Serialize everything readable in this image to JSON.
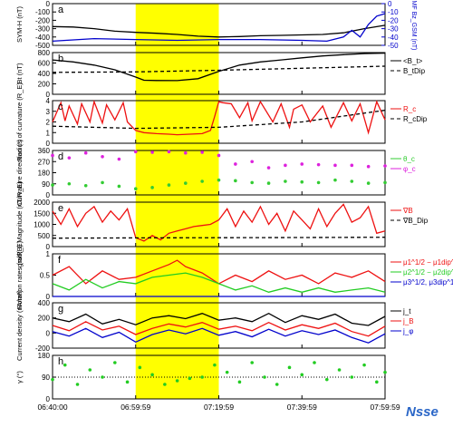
{
  "figure": {
    "x_ticks": [
      "06:40:00",
      "06:59:59",
      "07:19:59",
      "07:39:59",
      "07:59:59"
    ],
    "x_tick_values": [
      0,
      20,
      40,
      60,
      80
    ],
    "x_range": [
      0,
      80
    ],
    "highlight_interval": [
      "06:59:59",
      "07:19:59"
    ],
    "highlight_color": "#ffff00",
    "logo_text": "Nsse"
  },
  "chart_data": [
    {
      "type": "line",
      "panel": "a",
      "ylabel": "SYM-H (nT)",
      "ylim": [
        -500,
        0
      ],
      "yticks": [
        0,
        -100,
        -200,
        -300,
        -400,
        -500
      ],
      "ylabel_right": "IMF Bz_GSM (nT)",
      "ylim_right": [
        -50,
        0
      ],
      "yticks_right": [
        0,
        -10,
        -20,
        -30,
        -40,
        -50
      ],
      "series": [
        {
          "axis": "left",
          "color": "#000000",
          "x": [
            0,
            5,
            10,
            15,
            20,
            25,
            30,
            35,
            40,
            45,
            50,
            55,
            60,
            65,
            70,
            75,
            80
          ],
          "y": [
            -275,
            -280,
            -300,
            -330,
            -345,
            -355,
            -370,
            -390,
            -400,
            -395,
            -385,
            -380,
            -375,
            -370,
            -350,
            -300,
            -260
          ]
        },
        {
          "axis": "right",
          "color": "#0000cc",
          "x": [
            0,
            10,
            20,
            30,
            40,
            50,
            60,
            66,
            70,
            72,
            74,
            76,
            78,
            80
          ],
          "y": [
            -45,
            -42,
            -43,
            -44,
            -43,
            -43,
            -44,
            -45,
            -40,
            -32,
            -40,
            -25,
            -15,
            -12
          ]
        }
      ]
    },
    {
      "type": "line",
      "panel": "b",
      "ylabel": "Bt (nT)",
      "ylim": [
        0,
        800
      ],
      "yticks": [
        0,
        200,
        400,
        600,
        800
      ],
      "series": [
        {
          "name": "<B_t>",
          "color": "#000000",
          "dash": "",
          "x": [
            0,
            5,
            10,
            15,
            20,
            22,
            25,
            30,
            35,
            40,
            45,
            50,
            55,
            60,
            65,
            70,
            75,
            80
          ],
          "y": [
            660,
            620,
            560,
            470,
            330,
            270,
            265,
            262,
            300,
            440,
            560,
            620,
            660,
            700,
            735,
            760,
            780,
            790
          ]
        },
        {
          "name": "B_tDip",
          "color": "#000000",
          "dash": "4 3",
          "x": [
            0,
            20,
            40,
            60,
            80
          ],
          "y": [
            420,
            430,
            460,
            500,
            540
          ]
        }
      ]
    },
    {
      "type": "line",
      "panel": "c",
      "ylabel": "Radius of curvature (R_E)",
      "ylim": [
        0,
        4
      ],
      "yticks": [
        0,
        1,
        2,
        3,
        4
      ],
      "series": [
        {
          "name": "R_c",
          "color": "#ee1111",
          "dash": "",
          "x": [
            0,
            2,
            3,
            4,
            6,
            7,
            9,
            10,
            12,
            13,
            15,
            17,
            18,
            20,
            22,
            25,
            28,
            30,
            33,
            36,
            38,
            39,
            40,
            41,
            43,
            45,
            47,
            48,
            50,
            53,
            55,
            57,
            58,
            60,
            62,
            65,
            67,
            70,
            72,
            74,
            76,
            78,
            80
          ],
          "y": [
            2.0,
            3.8,
            2.1,
            3.5,
            1.8,
            3.7,
            2.0,
            3.9,
            1.9,
            3.6,
            2.2,
            3.8,
            2.0,
            1.2,
            1.0,
            0.9,
            0.85,
            0.8,
            0.85,
            0.9,
            1.2,
            2.5,
            3.9,
            3.8,
            3.7,
            2.4,
            3.8,
            2.1,
            3.9,
            2.0,
            3.7,
            1.5,
            3.2,
            3.6,
            2.0,
            3.5,
            1.5,
            3.8,
            2.1,
            3.7,
            1.0,
            3.9,
            2.2
          ]
        },
        {
          "name": "R_cDip",
          "color": "#000000",
          "dash": "4 3",
          "x": [
            0,
            20,
            40,
            60,
            80
          ],
          "y": [
            1.6,
            1.4,
            1.5,
            2.0,
            3.1
          ]
        }
      ]
    },
    {
      "type": "scatter",
      "panel": "d",
      "ylabel": "Curvature direction (°)",
      "ylim": [
        0,
        360
      ],
      "yticks": [
        0,
        90,
        180,
        270,
        360
      ],
      "series": [
        {
          "name": "θ_c",
          "color": "#33cc33",
          "x": [
            0,
            4,
            8,
            12,
            16,
            20,
            24,
            28,
            32,
            36,
            40,
            44,
            48,
            52,
            56,
            60,
            64,
            68,
            72,
            76,
            80
          ],
          "y": [
            80,
            90,
            75,
            100,
            70,
            50,
            60,
            80,
            95,
            110,
            120,
            115,
            100,
            95,
            110,
            105,
            100,
            120,
            110,
            95,
            100
          ]
        },
        {
          "name": "φ_c",
          "color": "#dd22dd",
          "x": [
            0,
            4,
            8,
            12,
            16,
            20,
            24,
            28,
            32,
            36,
            40,
            44,
            48,
            52,
            56,
            60,
            64,
            68,
            72,
            76,
            80
          ],
          "y": [
            320,
            300,
            340,
            310,
            290,
            350,
            345,
            350,
            340,
            345,
            320,
            250,
            270,
            220,
            240,
            250,
            245,
            240,
            240,
            230,
            235
          ]
        }
      ]
    },
    {
      "type": "line",
      "panel": "e",
      "ylabel": "grad(B) Magnitude (nT/R_E)",
      "ylim": [
        0,
        2000
      ],
      "yticks": [
        0,
        500,
        1000,
        1500,
        2000
      ],
      "series": [
        {
          "name": "∇B",
          "color": "#ee1111",
          "dash": "",
          "x": [
            0,
            2,
            4,
            6,
            8,
            10,
            12,
            14,
            16,
            18,
            20,
            22,
            24,
            26,
            28,
            30,
            32,
            34,
            36,
            38,
            40,
            42,
            44,
            46,
            48,
            50,
            52,
            54,
            56,
            58,
            60,
            62,
            64,
            66,
            68,
            70,
            72,
            74,
            76,
            78,
            80
          ],
          "y": [
            1600,
            1000,
            1700,
            900,
            1500,
            1800,
            1100,
            1600,
            1200,
            1700,
            400,
            250,
            500,
            300,
            600,
            700,
            800,
            900,
            950,
            1000,
            1200,
            1700,
            900,
            1600,
            1100,
            1800,
            1000,
            1500,
            700,
            1600,
            1200,
            800,
            1700,
            900,
            1500,
            1900,
            1100,
            1300,
            1800,
            600,
            700
          ]
        },
        {
          "name": "∇B_Dip",
          "color": "#000000",
          "dash": "4 3",
          "x": [
            0,
            20,
            40,
            60,
            80
          ],
          "y": [
            380,
            390,
            400,
            410,
            420
          ]
        }
      ]
    },
    {
      "type": "line",
      "panel": "f",
      "ylabel": "Rotation rates (π/R_E)",
      "ylim": [
        0,
        1
      ],
      "yticks": [
        0,
        0.5,
        1
      ],
      "series": [
        {
          "name": "μ1^1/2 − μ1dip^1/2",
          "color": "#ee1111",
          "x": [
            0,
            4,
            8,
            12,
            16,
            20,
            24,
            28,
            30,
            32,
            36,
            40,
            44,
            48,
            52,
            56,
            60,
            64,
            68,
            72,
            76,
            80
          ],
          "y": [
            0.5,
            0.7,
            0.3,
            0.6,
            0.4,
            0.45,
            0.6,
            0.75,
            0.85,
            0.7,
            0.55,
            0.3,
            0.5,
            0.35,
            0.6,
            0.4,
            0.5,
            0.3,
            0.55,
            0.45,
            0.6,
            0.35
          ]
        },
        {
          "name": "μ2^1/2 − μ2dip^1/2",
          "color": "#22cc22",
          "x": [
            0,
            4,
            8,
            12,
            16,
            20,
            24,
            28,
            32,
            36,
            40,
            44,
            48,
            52,
            56,
            60,
            64,
            68,
            72,
            76,
            80
          ],
          "y": [
            0.3,
            0.15,
            0.4,
            0.2,
            0.35,
            0.3,
            0.45,
            0.5,
            0.55,
            0.45,
            0.3,
            0.15,
            0.25,
            0.1,
            0.2,
            0.1,
            0.2,
            0.1,
            0.15,
            0.2,
            0.1
          ]
        },
        {
          "name": "μ3^1/2, μ3dip^1/2 = 0",
          "color": "#0000cc",
          "x": [
            0,
            80
          ],
          "y": [
            0,
            0
          ]
        }
      ]
    },
    {
      "type": "line",
      "panel": "g",
      "ylabel": "Current density (nA/m²)",
      "ylim": [
        -200,
        400
      ],
      "yticks": [
        -200,
        0,
        200,
        400
      ],
      "series": [
        {
          "name": "j_t",
          "color": "#000000",
          "x": [
            0,
            4,
            8,
            12,
            16,
            20,
            24,
            28,
            32,
            36,
            40,
            44,
            48,
            52,
            56,
            60,
            64,
            68,
            72,
            76,
            80
          ],
          "y": [
            200,
            150,
            250,
            120,
            180,
            110,
            200,
            230,
            190,
            260,
            170,
            200,
            150,
            260,
            140,
            230,
            180,
            250,
            130,
            100,
            220
          ]
        },
        {
          "name": "j_B",
          "color": "#ee1111",
          "x": [
            0,
            4,
            8,
            12,
            16,
            20,
            24,
            28,
            32,
            36,
            40,
            44,
            48,
            52,
            56,
            60,
            64,
            68,
            72,
            76,
            80
          ],
          "y": [
            100,
            30,
            150,
            40,
            90,
            -20,
            60,
            120,
            80,
            140,
            50,
            90,
            30,
            140,
            40,
            110,
            60,
            130,
            20,
            -40,
            90
          ]
        },
        {
          "name": "j_φ",
          "color": "#0000cc",
          "x": [
            0,
            4,
            8,
            12,
            16,
            20,
            24,
            28,
            32,
            36,
            40,
            44,
            48,
            52,
            56,
            60,
            64,
            68,
            72,
            76,
            80
          ],
          "y": [
            20,
            -40,
            60,
            -60,
            10,
            -120,
            -20,
            40,
            -10,
            60,
            -30,
            20,
            -50,
            50,
            -40,
            30,
            -20,
            40,
            -60,
            -130,
            -10
          ]
        }
      ]
    },
    {
      "type": "scatter",
      "panel": "h",
      "ylabel": "γ (°)",
      "ylim": [
        0,
        180
      ],
      "yticks": [
        0,
        90,
        180
      ],
      "series": [
        {
          "color": "#22cc22",
          "x": [
            0,
            3,
            6,
            9,
            12,
            15,
            18,
            21,
            24,
            27,
            30,
            33,
            36,
            39,
            42,
            45,
            48,
            51,
            54,
            57,
            60,
            63,
            66,
            69,
            72,
            75,
            78,
            80
          ],
          "y": [
            80,
            140,
            60,
            120,
            90,
            150,
            70,
            130,
            100,
            60,
            75,
            85,
            90,
            140,
            110,
            70,
            150,
            90,
            60,
            130,
            100,
            150,
            80,
            120,
            90,
            140,
            70,
            110
          ]
        }
      ]
    }
  ]
}
